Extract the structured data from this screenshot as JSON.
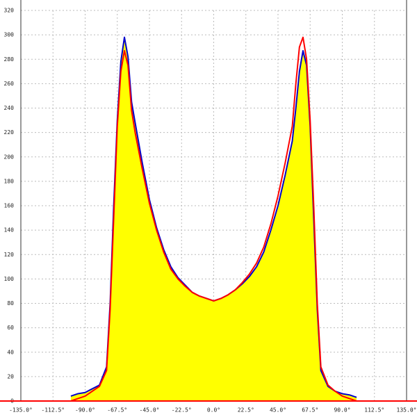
{
  "chart_data": {
    "type": "line",
    "x": [
      -100,
      -95,
      -90,
      -85,
      -80,
      -75,
      -72.5,
      -70,
      -67.5,
      -65,
      -62.5,
      -60,
      -57.5,
      -55,
      -50,
      -45,
      -40,
      -35,
      -30,
      -25,
      -20,
      -15,
      -10,
      -5,
      0,
      5,
      10,
      15,
      20,
      25,
      30,
      35,
      40,
      45,
      50,
      55,
      57.5,
      60,
      62.5,
      65,
      67.5,
      70,
      72.5,
      75,
      80,
      85,
      90,
      95,
      100
    ],
    "series": [
      {
        "color": "#0000cc",
        "fill": "#ffff00",
        "values": [
          4,
          6,
          7,
          10,
          13,
          28,
          80,
          160,
          230,
          278,
          298,
          282,
          245,
          228,
          195,
          165,
          142,
          124,
          110,
          101,
          95,
          89,
          86,
          84,
          82,
          84,
          87,
          91,
          96,
          102,
          110,
          122,
          140,
          160,
          185,
          213,
          240,
          270,
          287,
          275,
          225,
          150,
          75,
          25,
          12,
          8,
          6,
          5,
          3
        ]
      },
      {
        "color": "#ff0000",
        "values": [
          0,
          2,
          4,
          8,
          12,
          25,
          75,
          150,
          225,
          270,
          287,
          275,
          238,
          220,
          190,
          162,
          140,
          122,
          108,
          100,
          94,
          89,
          86,
          84,
          82,
          84,
          87,
          91,
          97,
          104,
          113,
          126,
          145,
          168,
          195,
          225,
          260,
          290,
          298,
          280,
          230,
          160,
          80,
          28,
          13,
          8,
          4,
          2,
          0
        ]
      }
    ],
    "xlim": [
      -135,
      135
    ],
    "xticks": [
      {
        "value": -135,
        "label": "-135.0°"
      },
      {
        "value": -112.5,
        "label": "-112.5°"
      },
      {
        "value": -90,
        "label": "-90.0°"
      },
      {
        "value": -67.5,
        "label": "-67.5°"
      },
      {
        "value": -45,
        "label": "-45.0°"
      },
      {
        "value": -22.5,
        "label": "-22.5°"
      },
      {
        "value": 0,
        "label": "0.0°"
      },
      {
        "value": 22.5,
        "label": "22.5°"
      },
      {
        "value": 45,
        "label": "45.0°"
      },
      {
        "value": 67.5,
        "label": "67.5°"
      },
      {
        "value": 90,
        "label": "90.0°"
      },
      {
        "value": 112.5,
        "label": "112.5°"
      },
      {
        "value": 135,
        "label": "135.0°"
      }
    ],
    "ylim": [
      0,
      320
    ],
    "yticks": [
      0,
      20,
      40,
      60,
      80,
      100,
      120,
      140,
      160,
      180,
      200,
      220,
      240,
      260,
      280,
      300,
      320
    ],
    "grid": true,
    "baseline_color": "#ff0000"
  }
}
